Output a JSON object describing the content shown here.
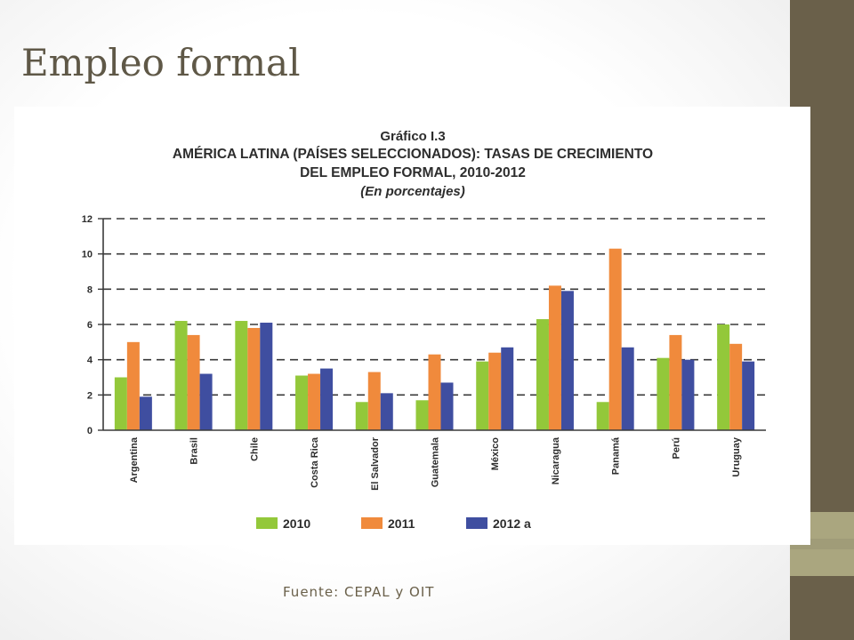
{
  "slide": {
    "title": "Empleo formal",
    "source_note": "Fuente: CEPAL y OIT"
  },
  "colors": {
    "sidebar": "#6a604a",
    "sidebar_accent": "#aaa67f",
    "title": "#5f5847"
  },
  "chart_data": {
    "type": "bar",
    "figure_label": "Gráfico I.3",
    "title_line1": "AMÉRICA LATINA (PAÍSES SELECCIONADOS): TASAS DE CRECIMIENTO",
    "title_line2": "DEL EMPLEO FORMAL, 2010-2012",
    "subtitle": "(En porcentajes)",
    "categories": [
      "Argentina",
      "Brasil",
      "Chile",
      "Costa Rica",
      "El Salvador",
      "Guatemala",
      "México",
      "Nicaragua",
      "Panamá",
      "Perú",
      "Uruguay"
    ],
    "series": [
      {
        "name": "2010",
        "color": "#93c83a",
        "values": [
          3.0,
          6.2,
          6.2,
          3.1,
          1.6,
          1.7,
          3.9,
          6.3,
          1.6,
          4.1,
          6.0
        ]
      },
      {
        "name": "2011",
        "color": "#f08a3c",
        "values": [
          5.0,
          5.4,
          5.8,
          3.2,
          3.3,
          4.3,
          4.4,
          8.2,
          10.3,
          5.4,
          4.9
        ]
      },
      {
        "name": "2012 a",
        "color": "#3f4ea0",
        "values": [
          1.9,
          3.2,
          6.1,
          3.5,
          2.1,
          2.7,
          4.7,
          7.9,
          4.7,
          4.0,
          3.9
        ]
      }
    ],
    "yticks": [
      0,
      2,
      4,
      6,
      8,
      10,
      12
    ],
    "ylim": [
      0,
      12
    ],
    "grid": "dashed horizontal",
    "legend": "bottom"
  }
}
